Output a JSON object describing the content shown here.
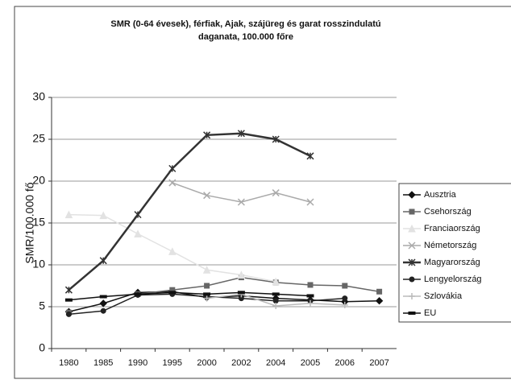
{
  "chart_data": {
    "type": "line",
    "title": [
      "SMR (0-64 évesek), férfiak, Ajak, szájüreg és garat rosszindulatú",
      "daganata, 100.000 főre"
    ],
    "y_label": "SMR/100.000 fő",
    "categories": [
      "1980",
      "1985",
      "1990",
      "1995",
      "2000",
      "2002",
      "2004",
      "2005",
      "2006",
      "2007"
    ],
    "ylim": [
      0,
      30
    ],
    "yticks": [
      0,
      5,
      10,
      15,
      20,
      25,
      30
    ],
    "grid": true,
    "legend": "right",
    "series": [
      {
        "name": "Ausztria",
        "color": "#111111",
        "marker": "diamond",
        "values": [
          4.4,
          5.4,
          6.7,
          6.8,
          6.1,
          6.3,
          6.0,
          5.8,
          5.6,
          5.7
        ]
      },
      {
        "name": "Csehország",
        "color": "#666666",
        "marker": "square",
        "values": [
          4.3,
          null,
          6.5,
          7.0,
          7.5,
          8.5,
          7.9,
          7.6,
          7.5,
          6.8
        ]
      },
      {
        "name": "Franciaország",
        "color": "#e2e2e2",
        "marker": "triangle",
        "values": [
          16,
          15.9,
          13.7,
          11.6,
          9.4,
          8.8,
          8.0,
          null,
          null,
          null
        ]
      },
      {
        "name": "Németország",
        "color": "#aaaaaa",
        "marker": "x",
        "values": [
          null,
          null,
          null,
          19.8,
          18.3,
          17.5,
          18.6,
          17.5,
          null,
          null
        ]
      },
      {
        "name": "Magyarország",
        "color": "#333333",
        "marker": "star",
        "values": [
          7,
          10.5,
          16,
          21.5,
          25.5,
          25.7,
          25,
          23,
          null,
          null
        ]
      },
      {
        "name": "Lengyelország",
        "color": "#222222",
        "marker": "circle",
        "values": [
          4.1,
          4.5,
          6.4,
          6.5,
          6.2,
          6.0,
          5.7,
          5.7,
          6.0,
          null
        ]
      },
      {
        "name": "Szlovákia",
        "color": "#bbbbbb",
        "marker": "plus",
        "values": [
          null,
          null,
          null,
          null,
          6.0,
          6.5,
          5.1,
          5.4,
          5.2,
          null
        ]
      },
      {
        "name": "EU",
        "color": "#111111",
        "marker": "dash",
        "values": [
          5.8,
          6.2,
          6.5,
          6.7,
          6.5,
          6.7,
          6.5,
          6.3,
          null,
          null
        ]
      }
    ]
  }
}
